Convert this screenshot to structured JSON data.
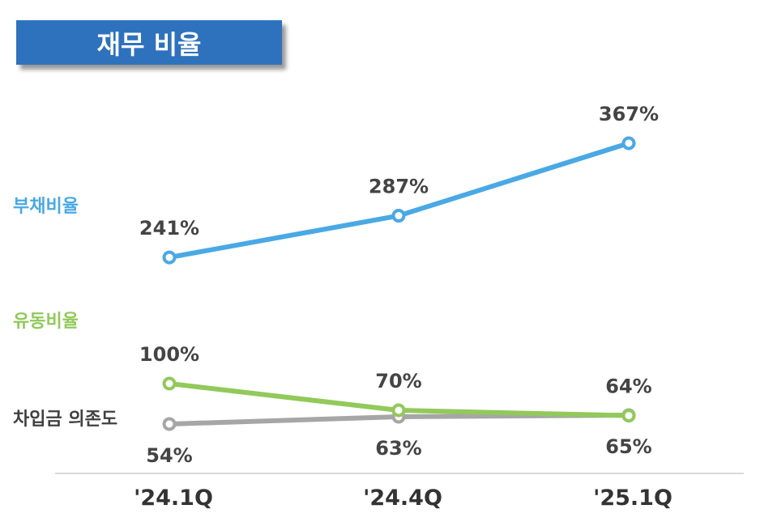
{
  "title": "재무 비율",
  "chart_data": {
    "type": "line",
    "title": "재무 비율",
    "categories": [
      "'24.1Q",
      "'24.4Q",
      "'25.1Q"
    ],
    "series": [
      {
        "name": "부채비율",
        "values": [
          241,
          287,
          367
        ],
        "labels": [
          "241%",
          "287%",
          "367%"
        ],
        "color": "#4aa9e4",
        "label_pos": "above"
      },
      {
        "name": "유동비율",
        "values": [
          100,
          70,
          64
        ],
        "labels": [
          "100%",
          "70%",
          "64%"
        ],
        "color": "#92c95b",
        "label_pos": "above"
      },
      {
        "name": "차입금 의존도",
        "values": [
          54,
          63,
          65
        ],
        "labels": [
          "54%",
          "63%",
          "65%"
        ],
        "color": "#a6a6a6",
        "label_pos": "below"
      }
    ],
    "xlabel": "",
    "ylabel": "",
    "grid": false,
    "legend": "left-inline"
  }
}
